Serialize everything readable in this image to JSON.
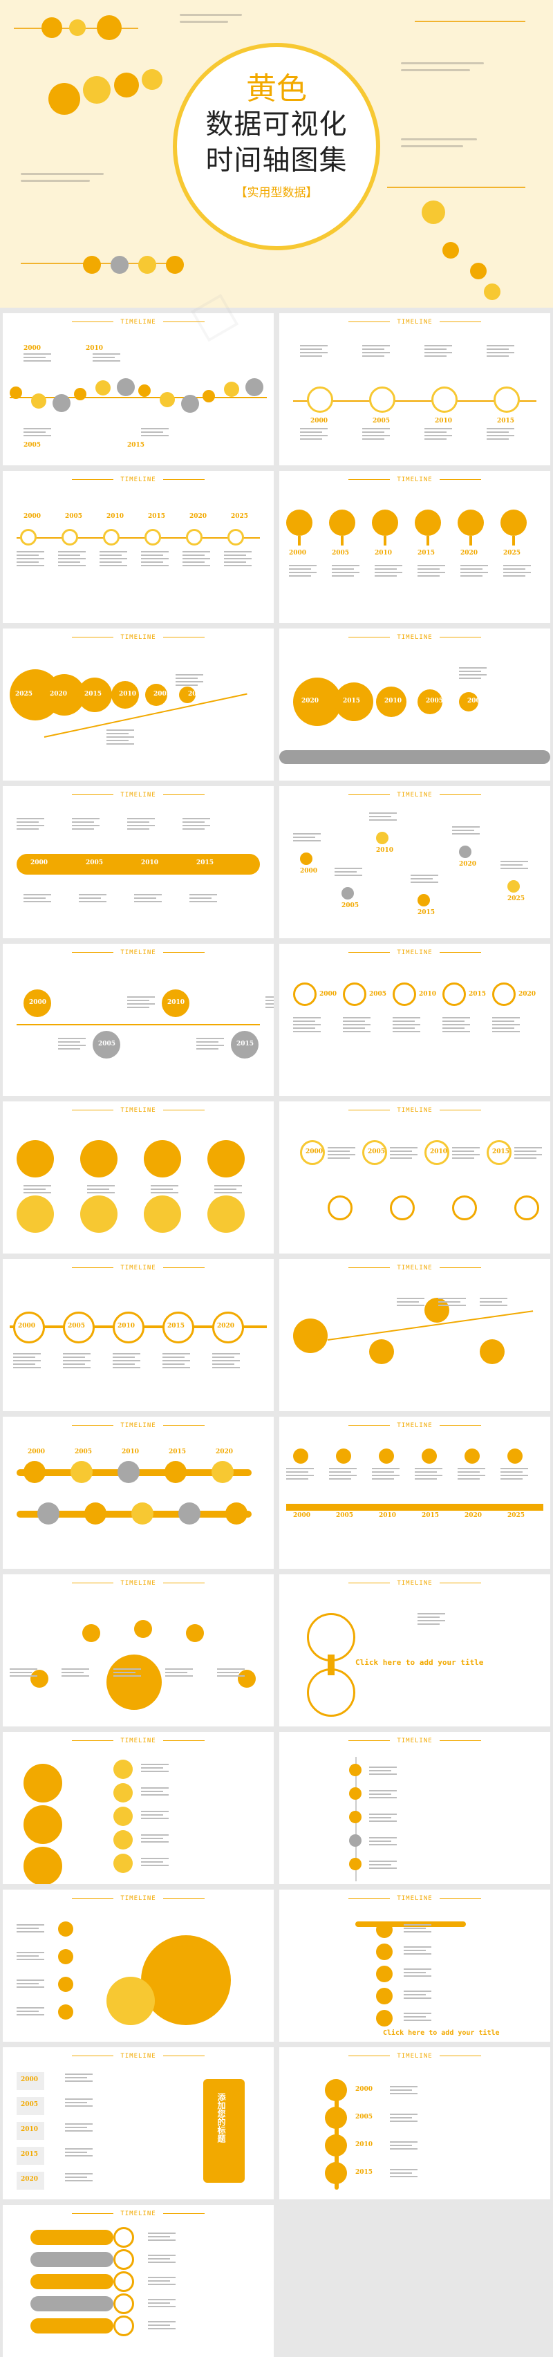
{
  "cover": {
    "title_line1": "黄色",
    "title_line2": "数据可视化",
    "title_line3": "时间轴图集",
    "subtitle": "【实用型数据】"
  },
  "slide_header": "TIMELINE",
  "years": [
    "2000",
    "2005",
    "2010",
    "2015",
    "2020",
    "2025"
  ],
  "bottom_caption": "Click here to add your title",
  "side_title": "添加您的标题",
  "colors": {
    "accent": "#f2a900",
    "accent_light": "#f7c832",
    "grey": "#a7a7a7",
    "cover_bg": "#fdf3d6",
    "page_bg": "#e7e7e7"
  }
}
